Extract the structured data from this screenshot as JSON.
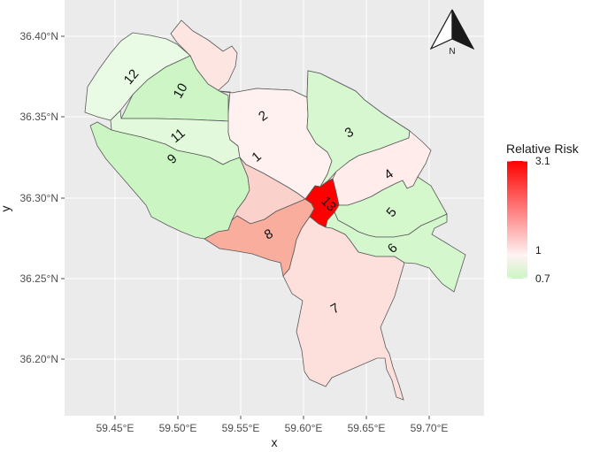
{
  "map": {
    "x_axis": {
      "title": "x",
      "ticks": [
        "59.45°E",
        "59.50°E",
        "59.55°E",
        "59.60°E",
        "59.65°E",
        "59.70°E"
      ]
    },
    "y_axis": {
      "title": "y",
      "ticks": [
        "36.20°N",
        "36.25°N",
        "36.30°N",
        "36.35°N",
        "36.40°N"
      ]
    },
    "north_arrow": {
      "label": "N"
    },
    "legend": {
      "title": "Relative Risk",
      "labels": [
        "3.1",
        "1",
        "0.7"
      ],
      "colors": {
        "high": "#ff0000",
        "mid": "#fff2f2",
        "low": "#ccf5c4"
      }
    },
    "regions": [
      {
        "id": "1",
        "label": "1",
        "relative_risk": 1.45,
        "color": "#fbd2cb"
      },
      {
        "id": "2",
        "label": "2",
        "relative_risk": 1.05,
        "color": "#fff1f0"
      },
      {
        "id": "3",
        "label": "3",
        "relative_risk": 0.8,
        "color": "#d7f7d0"
      },
      {
        "id": "4",
        "label": "4",
        "relative_risk": 1.1,
        "color": "#ffeceb"
      },
      {
        "id": "5",
        "label": "5",
        "relative_risk": 0.72,
        "color": "#d4f7cc"
      },
      {
        "id": "6",
        "label": "6",
        "relative_risk": 0.73,
        "color": "#d5f7cd"
      },
      {
        "id": "7",
        "label": "7",
        "relative_risk": 1.25,
        "color": "#fde0db"
      },
      {
        "id": "8",
        "label": "8",
        "relative_risk": 1.8,
        "color": "#f8ad9d"
      },
      {
        "id": "9",
        "label": "9",
        "relative_risk": 0.72,
        "color": "#ccf5c4"
      },
      {
        "id": "10",
        "label": "10",
        "relative_risk": 0.72,
        "color": "#cdf5c5"
      },
      {
        "id": "11",
        "label": "11",
        "relative_risk": 0.84,
        "color": "#e2f9dc"
      },
      {
        "id": "12",
        "label": "12",
        "relative_risk": 0.9,
        "color": "#eafbe5"
      },
      {
        "id": "13",
        "label": "13",
        "relative_risk": 3.1,
        "color": "#ff0000"
      },
      {
        "id": "north",
        "label": "",
        "relative_risk": 1.15,
        "color": "#fde6e2"
      }
    ]
  }
}
